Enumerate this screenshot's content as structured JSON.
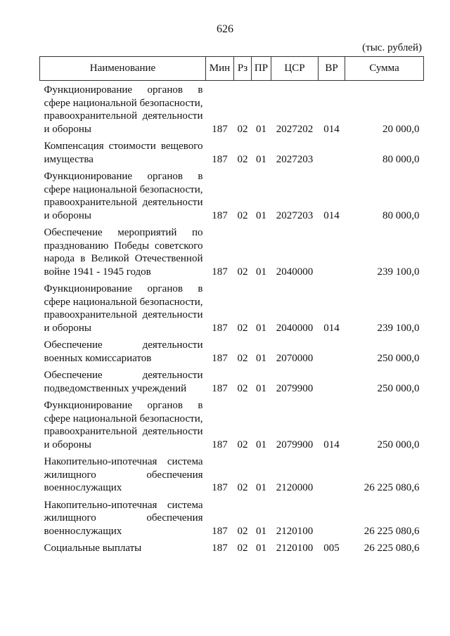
{
  "page_number": "626",
  "units": "(тыс. рублей)",
  "headers": [
    "Наименование",
    "Мин",
    "Рз",
    "ПР",
    "ЦСР",
    "ВР",
    "Сумма"
  ],
  "rows": [
    {
      "name": "Функционирование органов в сфере национальной безопасности, правоохранительной деятельности и обороны",
      "min": "187",
      "rz": "02",
      "pr": "01",
      "csr": "2027202",
      "vr": "014",
      "sum": "20 000,0"
    },
    {
      "name": "Компенсация стоимости вещевого имущества",
      "min": "187",
      "rz": "02",
      "pr": "01",
      "csr": "2027203",
      "vr": "",
      "sum": "80 000,0"
    },
    {
      "name": "Функционирование органов в сфере национальной безопасности, правоохранительной деятельности и обороны",
      "min": "187",
      "rz": "02",
      "pr": "01",
      "csr": "2027203",
      "vr": "014",
      "sum": "80 000,0"
    },
    {
      "name": "Обеспечение мероприятий по празднованию Победы советского народа в Великой Отечественной войне 1941 - 1945 годов",
      "min": "187",
      "rz": "02",
      "pr": "01",
      "csr": "2040000",
      "vr": "",
      "sum": "239 100,0"
    },
    {
      "name": "Функционирование органов в сфере национальной безопасности, правоохранительной деятельности и обороны",
      "min": "187",
      "rz": "02",
      "pr": "01",
      "csr": "2040000",
      "vr": "014",
      "sum": "239 100,0"
    },
    {
      "name": "Обеспечение деятельности военных комиссариатов",
      "min": "187",
      "rz": "02",
      "pr": "01",
      "csr": "2070000",
      "vr": "",
      "sum": "250 000,0"
    },
    {
      "name": "Обеспечение деятельности подведомственных учреждений",
      "min": "187",
      "rz": "02",
      "pr": "01",
      "csr": "2079900",
      "vr": "",
      "sum": "250 000,0"
    },
    {
      "name": "Функционирование органов в сфере национальной безопасности, правоохранительной деятельности и обороны",
      "min": "187",
      "rz": "02",
      "pr": "01",
      "csr": "2079900",
      "vr": "014",
      "sum": "250 000,0"
    },
    {
      "name": "Накопительно-ипотечная система жилищного обеспечения военнослужащих",
      "min": "187",
      "rz": "02",
      "pr": "01",
      "csr": "2120000",
      "vr": "",
      "sum": "26 225 080,6"
    },
    {
      "name": "Накопительно-ипотечная система жилищного обеспечения военнослужащих",
      "min": "187",
      "rz": "02",
      "pr": "01",
      "csr": "2120100",
      "vr": "",
      "sum": "26 225 080,6"
    },
    {
      "name": "Социальные выплаты",
      "min": "187",
      "rz": "02",
      "pr": "01",
      "csr": "2120100",
      "vr": "005",
      "sum": "26 225 080,6"
    }
  ]
}
